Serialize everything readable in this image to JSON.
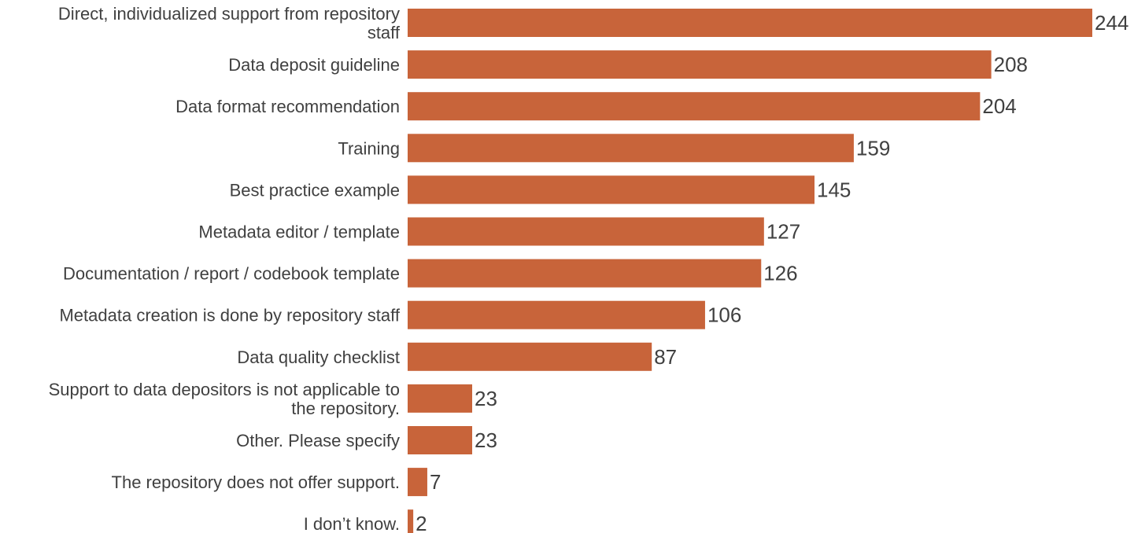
{
  "chart_data": {
    "type": "bar",
    "orientation": "horizontal",
    "title": "",
    "xlabel": "",
    "ylabel": "",
    "xlim": [
      0,
      244
    ],
    "grid": false,
    "legend": "none",
    "bar_color": "#c8643a",
    "label_color": "#404040",
    "categories": [
      [
        "Direct, individualized support from repository",
        "staff"
      ],
      [
        "Data deposit guideline"
      ],
      [
        "Data format recommendation"
      ],
      [
        "Training"
      ],
      [
        "Best practice example"
      ],
      [
        "Metadata editor / template"
      ],
      [
        "Documentation / report / codebook template"
      ],
      [
        "Metadata creation is done by repository staff"
      ],
      [
        "Data quality checklist"
      ],
      [
        "Support to data depositors is not applicable to",
        "the repository."
      ],
      [
        "Other. Please specify"
      ],
      [
        "The repository does not offer support."
      ],
      [
        "I don’t know."
      ]
    ],
    "values": [
      244,
      208,
      204,
      159,
      145,
      127,
      126,
      106,
      87,
      23,
      23,
      7,
      2
    ]
  }
}
